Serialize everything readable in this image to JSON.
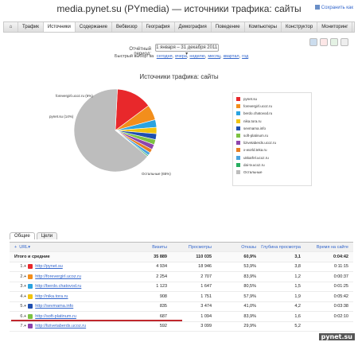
{
  "header": {
    "title": "media.pynet.su (PYmedia) — источники трафика: сайты",
    "save_label": "Сохранить как"
  },
  "nav": {
    "tabs": [
      "Трафик",
      "Источники",
      "Содержание",
      "Вебвизор",
      "География",
      "Демография",
      "Поведение",
      "Компьютеры",
      "Конструктор",
      "Мониторинг"
    ],
    "active_index": 1
  },
  "period": {
    "label": "Отчётный период:",
    "value": "1 января – 31 декабря 2011",
    "quick_label": "Быстрый выбор: за",
    "quick_links": [
      "сегодня",
      "вчера",
      "неделю",
      "месяц",
      "квартал",
      "год"
    ]
  },
  "section_title": "Источники трафика: сайты",
  "chart_data": {
    "type": "pie",
    "slices": [
      {
        "label": "pynet.su",
        "value": 14,
        "color": "#e8282b"
      },
      {
        "label": "forevergirl.ucoz.ru",
        "value": 6,
        "color": "#f28e1c"
      },
      {
        "label": "berdo.chatovod.ru",
        "value": 3,
        "color": "#2aa3e0"
      },
      {
        "label": "nika.tora.ru",
        "value": 2.5,
        "color": "#f1c40f"
      },
      {
        "label": "sevmama.info",
        "value": 2.3,
        "color": "#1f4fb0"
      },
      {
        "label": "soft-platinum.ru",
        "value": 2,
        "color": "#7dc242"
      },
      {
        "label": "lizivetaberds.ucoz.ru",
        "value": 2,
        "color": "#8e44ad"
      },
      {
        "label": "x-world.teka.ru",
        "value": 1.5,
        "color": "#e67e22"
      },
      {
        "label": "ukkarfel.ucoz.ru",
        "value": 1.2,
        "color": "#4aa3df"
      },
      {
        "label": "dai-tv.ucoz.ru",
        "value": 0.5,
        "color": "#27ae60"
      },
      {
        "label": "Остальные",
        "value": 65,
        "color": "#bdbdbd"
      }
    ],
    "labels_on_chart": [
      "forevergirl.ucoz.ru (6%)",
      "pynet.su (14%)",
      "Остальные (65%)"
    ]
  },
  "tabs2": [
    "Общие",
    "Цели"
  ],
  "table": {
    "headers": [
      "URL",
      "Визиты",
      "Просмотры",
      "Отказы",
      "Глубина просмотра",
      "Время на сайте"
    ],
    "total": [
      "Итого и средние",
      "35 889",
      "110 035",
      "60,9%",
      "3,1",
      "0:04:42"
    ],
    "rows": [
      {
        "n": "1.",
        "url": "http://pynet.su",
        "color": "#e8282b",
        "v": [
          "4 934",
          "18 946",
          "53,9%",
          "3,8",
          "0:11:15"
        ]
      },
      {
        "n": "2.",
        "url": "http://forevergirl.ucoz.ru",
        "color": "#f28e1c",
        "v": [
          "2 254",
          "2 707",
          "83,9%",
          "1,2",
          "0:00:37"
        ]
      },
      {
        "n": "3.",
        "url": "http://berdo.chatovod.ru",
        "color": "#2aa3e0",
        "v": [
          "1 123",
          "1 647",
          "80,5%",
          "1,5",
          "0:01:25"
        ]
      },
      {
        "n": "4.",
        "url": "http://nika.tora.ru",
        "color": "#f1c40f",
        "v": [
          "908",
          "1 751",
          "57,9%",
          "1,9",
          "0:05:42"
        ]
      },
      {
        "n": "5.",
        "url": "http://sevmama.info",
        "color": "#1f4fb0",
        "v": [
          "835",
          "3 474",
          "41,0%",
          "4,2",
          "0:03:38"
        ]
      },
      {
        "n": "6.",
        "url": "http://soft-platinum.ru",
        "color": "#7dc242",
        "v": [
          "687",
          "1 094",
          "83,9%",
          "1,6",
          "0:02:10"
        ]
      },
      {
        "n": "7.",
        "url": "http://lizivetaberds.ucoz.ru",
        "color": "#8e44ad",
        "v": [
          "592",
          "3 099",
          "29,9%",
          "5,2",
          ""
        ]
      }
    ]
  },
  "watermark": "pynet.su"
}
